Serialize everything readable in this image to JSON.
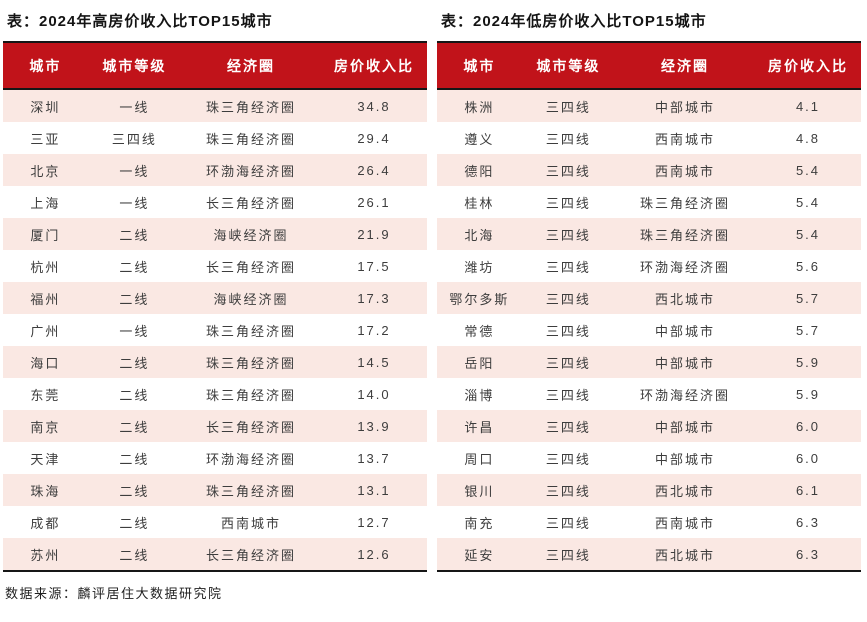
{
  "source_note": "数据来源：麟评居住大数据研究院",
  "colors": {
    "header_bg": "#c1131a",
    "header_text": "#ffffff",
    "row_alt_bg": "#fae8e3",
    "row_bg": "#ffffff",
    "border_dark": "#161616",
    "body_text": "#3d3d3d"
  },
  "tables": [
    {
      "title": "表：2024年高房价收入比TOP15城市",
      "columns": [
        "城市",
        "城市等级",
        "经济圈",
        "房价收入比"
      ],
      "rows": [
        [
          "深圳",
          "一线",
          "珠三角经济圈",
          "34.8"
        ],
        [
          "三亚",
          "三四线",
          "珠三角经济圈",
          "29.4"
        ],
        [
          "北京",
          "一线",
          "环渤海经济圈",
          "26.4"
        ],
        [
          "上海",
          "一线",
          "长三角经济圈",
          "26.1"
        ],
        [
          "厦门",
          "二线",
          "海峡经济圈",
          "21.9"
        ],
        [
          "杭州",
          "二线",
          "长三角经济圈",
          "17.5"
        ],
        [
          "福州",
          "二线",
          "海峡经济圈",
          "17.3"
        ],
        [
          "广州",
          "一线",
          "珠三角经济圈",
          "17.2"
        ],
        [
          "海口",
          "二线",
          "珠三角经济圈",
          "14.5"
        ],
        [
          "东莞",
          "二线",
          "珠三角经济圈",
          "14.0"
        ],
        [
          "南京",
          "二线",
          "长三角经济圈",
          "13.9"
        ],
        [
          "天津",
          "二线",
          "环渤海经济圈",
          "13.7"
        ],
        [
          "珠海",
          "二线",
          "珠三角经济圈",
          "13.1"
        ],
        [
          "成都",
          "二线",
          "西南城市",
          "12.7"
        ],
        [
          "苏州",
          "二线",
          "长三角经济圈",
          "12.6"
        ]
      ]
    },
    {
      "title": "表：2024年低房价收入比TOP15城市",
      "columns": [
        "城市",
        "城市等级",
        "经济圈",
        "房价收入比"
      ],
      "rows": [
        [
          "株洲",
          "三四线",
          "中部城市",
          "4.1"
        ],
        [
          "遵义",
          "三四线",
          "西南城市",
          "4.8"
        ],
        [
          "德阳",
          "三四线",
          "西南城市",
          "5.4"
        ],
        [
          "桂林",
          "三四线",
          "珠三角经济圈",
          "5.4"
        ],
        [
          "北海",
          "三四线",
          "珠三角经济圈",
          "5.4"
        ],
        [
          "潍坊",
          "三四线",
          "环渤海经济圈",
          "5.6"
        ],
        [
          "鄂尔多斯",
          "三四线",
          "西北城市",
          "5.7"
        ],
        [
          "常德",
          "三四线",
          "中部城市",
          "5.7"
        ],
        [
          "岳阳",
          "三四线",
          "中部城市",
          "5.9"
        ],
        [
          "淄博",
          "三四线",
          "环渤海经济圈",
          "5.9"
        ],
        [
          "许昌",
          "三四线",
          "中部城市",
          "6.0"
        ],
        [
          "周口",
          "三四线",
          "中部城市",
          "6.0"
        ],
        [
          "银川",
          "三四线",
          "西北城市",
          "6.1"
        ],
        [
          "南充",
          "三四线",
          "西南城市",
          "6.3"
        ],
        [
          "延安",
          "三四线",
          "西北城市",
          "6.3"
        ]
      ]
    }
  ]
}
